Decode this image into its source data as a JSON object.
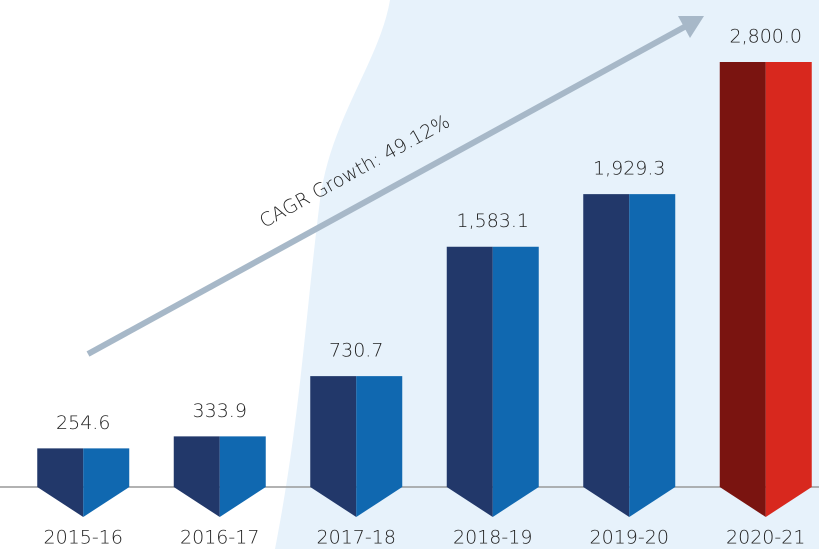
{
  "chart_data": {
    "type": "bar",
    "categories": [
      "2015-16",
      "2016-17",
      "2017-18",
      "2018-19",
      "2019-20",
      "2020-21"
    ],
    "values": [
      254.6,
      333.9,
      730.7,
      1583.1,
      1929.3,
      2800.0
    ],
    "value_labels": [
      "254.6",
      "333.9",
      "730.7",
      "1,583.1",
      "1,929.3",
      "2,800.0"
    ],
    "colors": [
      "#1068b0",
      "#1068b0",
      "#1068b0",
      "#1068b0",
      "#1068b0",
      "#d8281e"
    ],
    "shade_colors": [
      "#22386a",
      "#22386a",
      "#22386a",
      "#22386a",
      "#22386a",
      "#7a1410"
    ],
    "annotation": "CAGR Growth: 49.12%"
  }
}
